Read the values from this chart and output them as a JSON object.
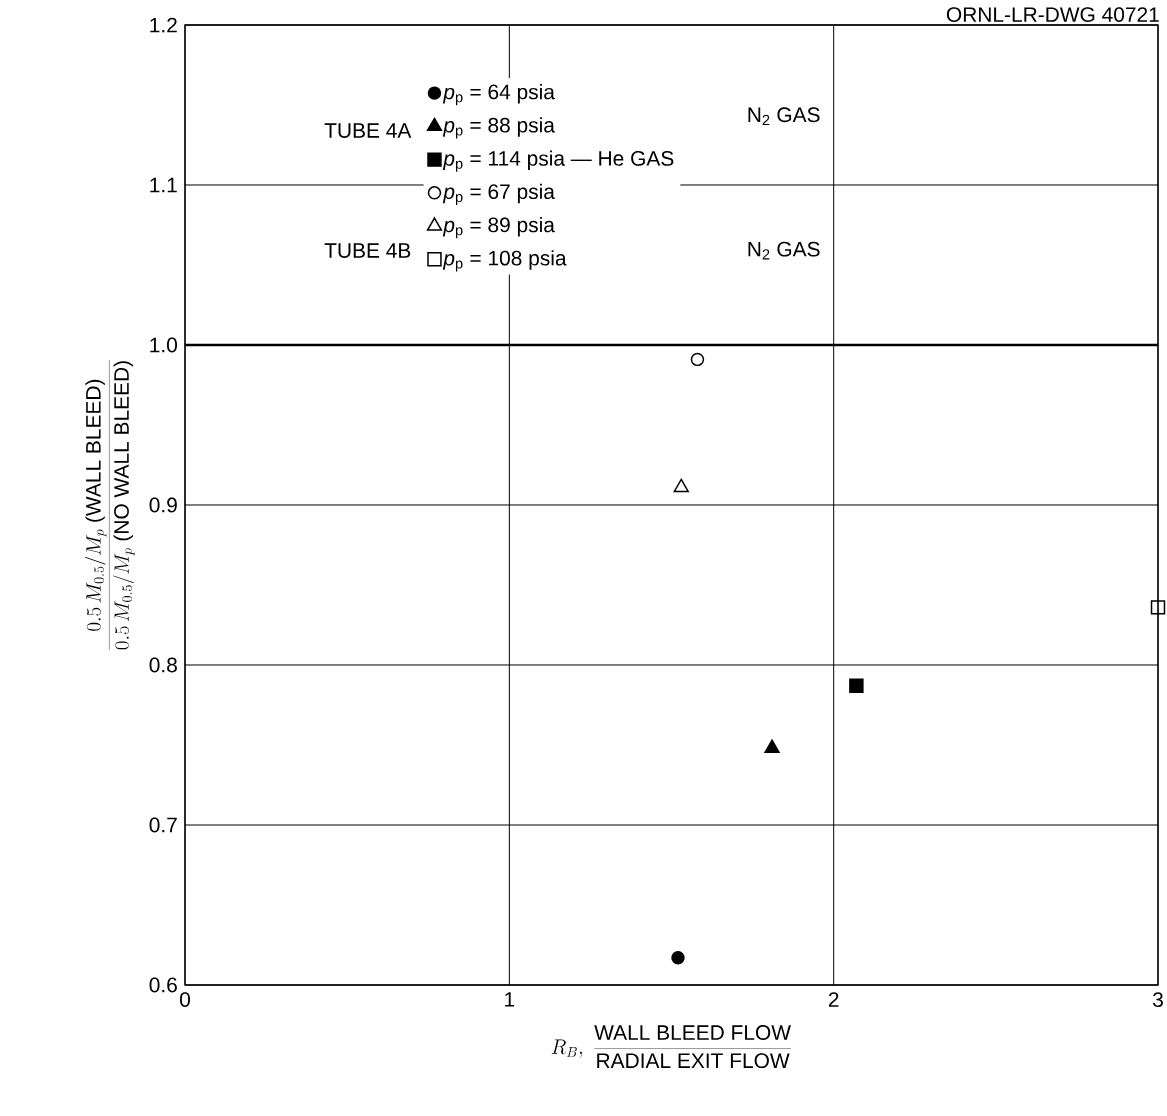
{
  "chart_data": {
    "type": "scatter",
    "xlabel": "R_{B},\\ \\frac{\\mbox{WALL BLEED FLOW}}{\\mbox{RADIAL EXIT FLOW}}",
    "ylabel": "\\frac{0.5\\,M_{0.5}/M_{p}\\ \\mbox{(WALL BLEED)}}{0.5\\,M_{0.5}/M_{p}\\ \\mbox{(NO WALL BLEED)}}",
    "series": [
      {
        "name": "*p*$_{p}$ = 64 psia",
        "color": "#000000",
        "marker": "circle",
        "x": [
          1.52
        ],
        "values": [
          0.617
        ]
      },
      {
        "name": "*p*$_{p}$ = 88 psia",
        "color": "#000000",
        "marker": "triangle",
        "x": [
          1.81
        ],
        "values": [
          0.748
        ]
      },
      {
        "name": "*p*$_{p}$ = 114 psia — He GAS",
        "color": "#000000",
        "marker": "square",
        "x": [
          2.07
        ],
        "values": [
          0.787
        ]
      },
      {
        "name": "*p*$_{p}$ = 67 psia",
        "color": "#000000",
        "marker": "circle",
        "x": [
          1.58
        ],
        "values": [
          0.991
        ]
      },
      {
        "name": "*p*$_{p}$ = 89 psia",
        "color": "#000000",
        "marker": "triangle",
        "x": [
          1.53
        ],
        "values": [
          0.911
        ]
      },
      {
        "name": "*p*$_{p}$ = 108 psia",
        "color": "#000000",
        "marker": "square",
        "x": [
          3.0
        ],
        "values": [
          0.836
        ]
      }
    ],
    "xlim": [
      0,
      3
    ],
    "xticks": [
      0,
      1,
      2,
      3
    ],
    "ylim": [
      0.6,
      1.2
    ],
    "yticks": [
      0.6,
      0.7,
      0.8,
      0.9,
      {
        "value": 1.0,
        "label": "1.0"
      },
      1.1,
      1.2
    ],
    "grid": true,
    "legend": "top",
    "ref_lines": [
      {
        "axis": "y",
        "value": 1.0
      }
    ],
    "annotations": [
      "ORNL-LR-DWG 40721",
      "TUBE 4A",
      "N$_{2}$ GAS",
      "TUBE 4B",
      "N$_{2}$ GAS"
    ]
  }
}
